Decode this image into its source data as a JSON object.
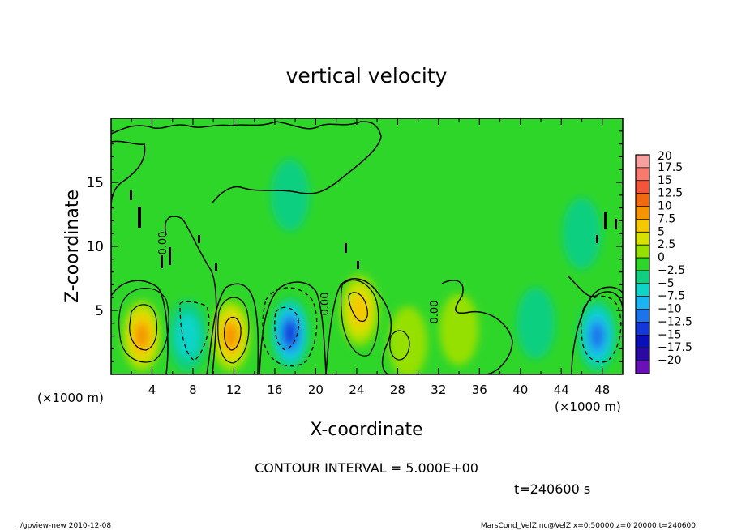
{
  "chart_data": {
    "type": "heatmap",
    "title": "vertical velocity",
    "xlabel": "X-coordinate",
    "ylabel": "Z-coordinate",
    "x_unit": "(×1000 m)",
    "y_unit": "(×1000 m)",
    "xlim": [
      0,
      50
    ],
    "ylim": [
      0,
      20
    ],
    "x_ticks": [
      4,
      8,
      12,
      16,
      20,
      24,
      28,
      32,
      36,
      40,
      44,
      48
    ],
    "y_ticks": [
      5,
      10,
      15
    ],
    "colorbar": {
      "labels": [
        "20",
        "17.5",
        "15",
        "12.5",
        "10",
        "7.5",
        "5",
        "2.5",
        "0",
        "-2.5",
        "-5",
        "-7.5",
        "-10",
        "-12.5",
        "-15",
        "-17.5",
        "-20"
      ],
      "colors": [
        "#f7a0a0",
        "#f77a6e",
        "#f2553a",
        "#ef6a10",
        "#f49500",
        "#f5c800",
        "#d8e000",
        "#96e000",
        "#2fd62a",
        "#10cf80",
        "#10d4c8",
        "#1ab4f0",
        "#1c74ea",
        "#1438d8",
        "#0a10b8",
        "#2a0aa0",
        "#6a10b8"
      ]
    },
    "contour_labels": [
      "0.00",
      "0.00",
      "0.00"
    ],
    "cells": [
      {
        "x": 3,
        "z": 3,
        "w": 10
      },
      {
        "x": 7.5,
        "z": 3,
        "w": -4
      },
      {
        "x": 11.7,
        "z": 3,
        "w": 9
      },
      {
        "x": 17.5,
        "z": 3.2,
        "w": -12
      },
      {
        "x": 24.3,
        "z": 5,
        "w": 7
      },
      {
        "x": 29,
        "z": 2.5,
        "w": 3
      },
      {
        "x": 34,
        "z": 3.5,
        "w": 2
      },
      {
        "x": 41.5,
        "z": 4,
        "w": -2
      },
      {
        "x": 47.5,
        "z": 3,
        "w": -11
      },
      {
        "x": 17.5,
        "z": 14,
        "w": -1
      },
      {
        "x": 46,
        "z": 11,
        "w": -1
      }
    ],
    "annotations": {
      "contour_interval": "CONTOUR INTERVAL = 5.000E+00",
      "time": "t=240600 s"
    }
  },
  "footer": {
    "left": "./gpview-new  2010-12-08",
    "right": "MarsCond_VelZ.nc@VelZ,x=0:50000,z=0:20000,t=240600"
  }
}
